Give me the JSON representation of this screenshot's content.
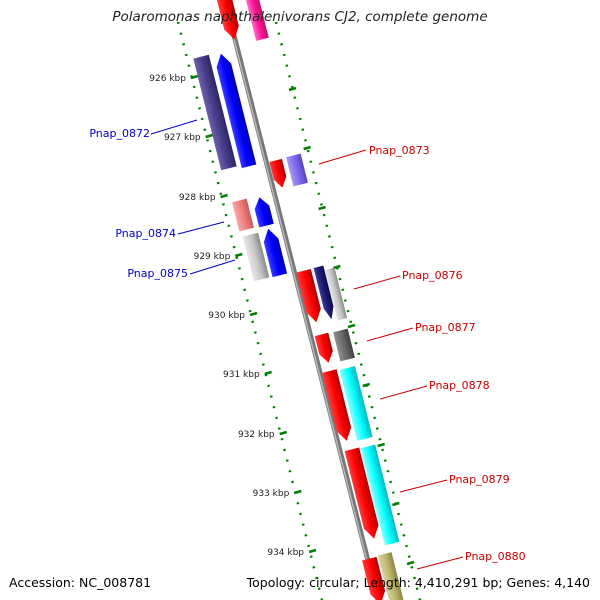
{
  "title": "Polaromonas naphthalenivorans CJ2, complete genome",
  "accession": "Accession: NC_008781",
  "summary": "Topology: circular; Length: 4,410,291 bp; Genes: 4,140",
  "colors": {
    "backbone": "#8c8c8c",
    "ticks": "#008000",
    "forward_label": "#0000c8",
    "reverse_label": "#c80000"
  },
  "scale_labels": [
    "926 kbp",
    "927 kbp",
    "928 kbp",
    "929 kbp",
    "930 kbp",
    "931 kbp",
    "932 kbp",
    "933 kbp",
    "934 kbp"
  ],
  "forward_genes": [
    {
      "label": "Pnap_0872"
    },
    {
      "label": "Pnap_0874"
    },
    {
      "label": "Pnap_0875"
    }
  ],
  "reverse_genes": [
    {
      "label": "Pnap_0873"
    },
    {
      "label": "Pnap_0876"
    },
    {
      "label": "Pnap_0877"
    },
    {
      "label": "Pnap_0878"
    },
    {
      "label": "Pnap_0879"
    },
    {
      "label": "Pnap_0880"
    }
  ]
}
